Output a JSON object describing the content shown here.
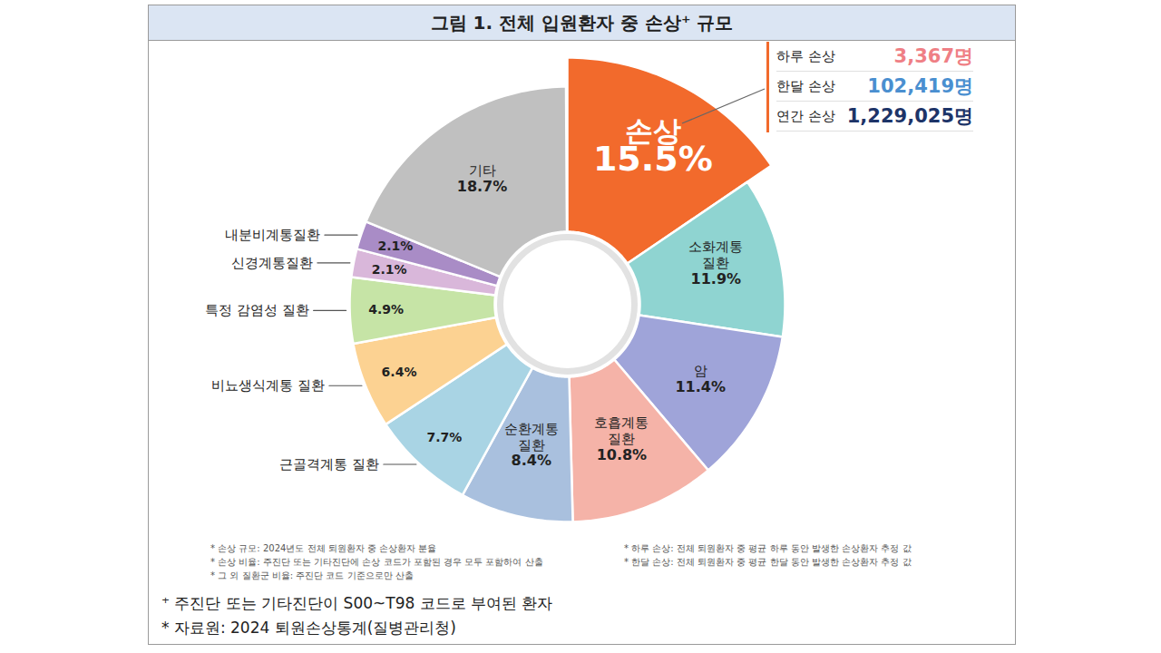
{
  "chart_data": {
    "type": "donut",
    "title": "그림 1. 전체 입원환자 중 손상⁺ 규모",
    "categories": [
      "손상",
      "소화계통 질환",
      "암",
      "호흡계통 질환",
      "순환계통 질환",
      "근골격계통 질환",
      "비뇨생식계통 질환",
      "특정 감염성 질환",
      "신경계통질환",
      "내분비계통질환",
      "기타"
    ],
    "values": [
      15.5,
      11.9,
      11.4,
      10.8,
      8.4,
      7.7,
      6.4,
      4.9,
      2.1,
      2.1,
      18.7
    ],
    "value_labels": [
      "15.5%",
      "11.9%",
      "11.4%",
      "10.8%",
      "8.4%",
      "7.7%",
      "6.4%",
      "4.9%",
      "2.1%",
      "2.1%",
      "18.7%"
    ],
    "colors": [
      "#f26a2c",
      "#8fd4d1",
      "#9fa4d9",
      "#f5b3a8",
      "#a9c0de",
      "#a9d4e4",
      "#fcd292",
      "#c6e4a6",
      "#d9b7da",
      "#a98cc6",
      "#c0c0c0"
    ],
    "data_labels": true,
    "annotations": {
      "callout": [
        {
          "label": "하루 손상",
          "value": 3367,
          "value_label": "3,367명",
          "color": "#ef7f85"
        },
        {
          "label": "한달 손상",
          "value": 102419,
          "value_label": "102,419명",
          "color": "#4a8fd0"
        },
        {
          "label": "연간 손상",
          "value": 1229025,
          "value_label": "1,229,025명",
          "color": "#1d3468"
        }
      ],
      "notes_left": [
        "* 손상 규모: 2024년도 전체 퇴원환자 중 손상환자 분율",
        "* 손상 비율: 주진단 또는 기타진단에 손상 코드가 포함된 경우 모두 포함하여 산출",
        "* 그 외 질환군 비율: 주진단 코드 기준으로만 산출"
      ],
      "notes_right": [
        "* 하루 손상: 전체 퇴원환자 중 평균 하루 동안 발생한 손상환자 추정 값",
        "* 한달 손상: 전체 퇴원환자 중 평균 한달 동안 발생한 손상환자 추정 값"
      ]
    },
    "footnotes": [
      "⁺ 주진단 또는 기타진단이 S00~T98 코드로 부여된 환자",
      "* 자료원: 2024 퇴원손상통계(질병관리청)"
    ]
  }
}
